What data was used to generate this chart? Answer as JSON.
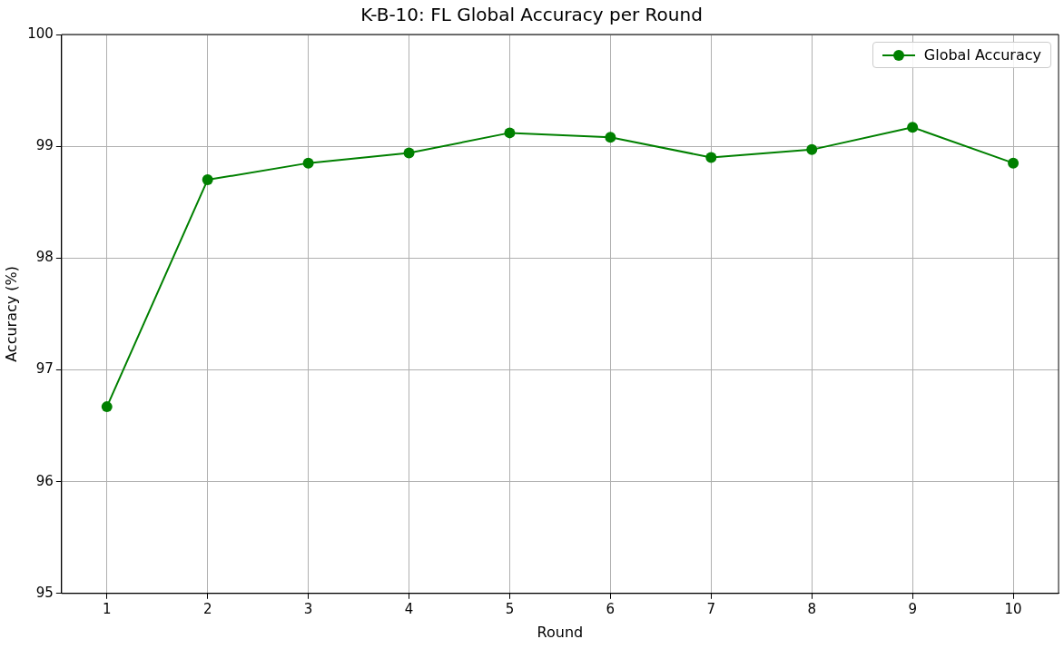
{
  "chart_data": {
    "type": "line",
    "title": "K-B-10: FL Global Accuracy per Round",
    "xlabel": "Round",
    "ylabel": "Accuracy (%)",
    "x": [
      1,
      2,
      3,
      4,
      5,
      6,
      7,
      8,
      9,
      10
    ],
    "series": [
      {
        "name": "Global Accuracy",
        "color": "#008000",
        "values": [
          96.67,
          98.7,
          98.85,
          98.94,
          99.12,
          99.08,
          98.9,
          98.97,
          99.17,
          98.85
        ]
      }
    ],
    "xlim": [
      0.55,
      10.45
    ],
    "xticks": [
      1,
      2,
      3,
      4,
      5,
      6,
      7,
      8,
      9,
      10
    ],
    "ylim": [
      95,
      100
    ],
    "yticks": [
      95,
      96,
      97,
      98,
      99,
      100
    ],
    "grid": true,
    "legend": "top right",
    "marker": "circle",
    "line_style": "solid"
  }
}
